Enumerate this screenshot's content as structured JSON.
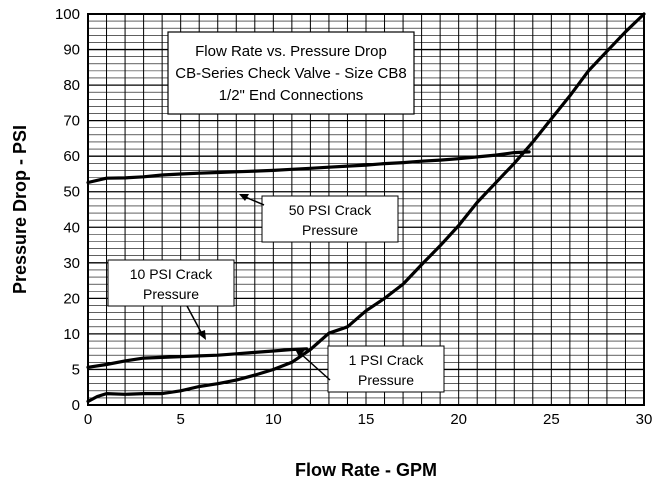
{
  "chart_data": {
    "type": "line",
    "title_lines": [
      "Flow Rate vs. Pressure Drop",
      "CB-Series Check Valve - Size CB8",
      "1/2\" End Connections"
    ],
    "xlabel": "Flow Rate - GPM",
    "ylabel": "Pressure Drop - PSI",
    "xlim": [
      0,
      30
    ],
    "x_ticks": [
      0,
      5,
      10,
      15,
      20,
      25,
      30
    ],
    "x_tick_labels": [
      "0",
      "5",
      "10",
      "15",
      "20",
      "25",
      "30"
    ],
    "y_ticks": [
      0,
      5,
      10,
      20,
      30,
      40,
      50,
      60,
      70,
      80,
      90,
      100
    ],
    "y_tick_labels": [
      "0",
      "5",
      "10",
      "20",
      "30",
      "40",
      "50",
      "60",
      "70",
      "80",
      "90",
      "100"
    ],
    "y_scale": {
      "type": "piecewise-linear",
      "note": "0-10 PSI in 5 PSI steps, then 10 PSI steps to 100",
      "breakpoints": [
        0,
        5,
        10,
        20,
        30,
        40,
        50,
        60,
        70,
        80,
        90,
        100
      ]
    },
    "grid": true,
    "series": [
      {
        "label_lines": [
          "50 PSI Crack",
          "Pressure"
        ],
        "x": [
          0,
          1,
          2,
          3,
          4,
          5,
          6,
          7,
          8,
          9,
          10,
          11,
          12,
          13,
          14,
          15,
          16,
          17,
          18,
          19,
          20,
          21,
          22,
          23,
          23.8
        ],
        "y": [
          52.6,
          53.8,
          53.9,
          54.2,
          54.7,
          55.0,
          55.2,
          55.4,
          55.6,
          55.8,
          56.0,
          56.3,
          56.6,
          56.9,
          57.2,
          57.5,
          57.9,
          58.2,
          58.6,
          58.9,
          59.3,
          59.8,
          60.3,
          61.0,
          61.2
        ]
      },
      {
        "label_lines": [
          "10 PSI Crack",
          "Pressure"
        ],
        "x": [
          0,
          1,
          2,
          3,
          4,
          5,
          6,
          7,
          8,
          9,
          10,
          11,
          11.8
        ],
        "y": [
          5.3,
          5.7,
          6.2,
          6.6,
          6.7,
          6.8,
          6.9,
          7.0,
          7.2,
          7.4,
          7.6,
          7.8,
          7.9
        ]
      },
      {
        "label_lines": [
          "1 PSI Crack",
          "Pressure"
        ],
        "x": [
          0,
          0.5,
          1,
          2,
          3,
          4,
          5,
          6,
          7,
          8,
          9,
          10,
          11,
          12,
          13,
          14,
          15,
          16,
          17,
          18,
          19,
          20,
          21,
          22,
          23,
          24,
          25,
          26,
          27,
          28,
          29,
          30
        ],
        "y": [
          0.5,
          1.2,
          1.6,
          1.5,
          1.6,
          1.6,
          2.0,
          2.6,
          3.0,
          3.5,
          4.2,
          5.0,
          6.0,
          7.8,
          10.2,
          12.0,
          16.5,
          20.0,
          24.0,
          29.5,
          34.8,
          40.5,
          47.0,
          52.5,
          58.0,
          64.0,
          70.5,
          77.0,
          84.0,
          89.5,
          95.0,
          100.0
        ]
      }
    ]
  }
}
